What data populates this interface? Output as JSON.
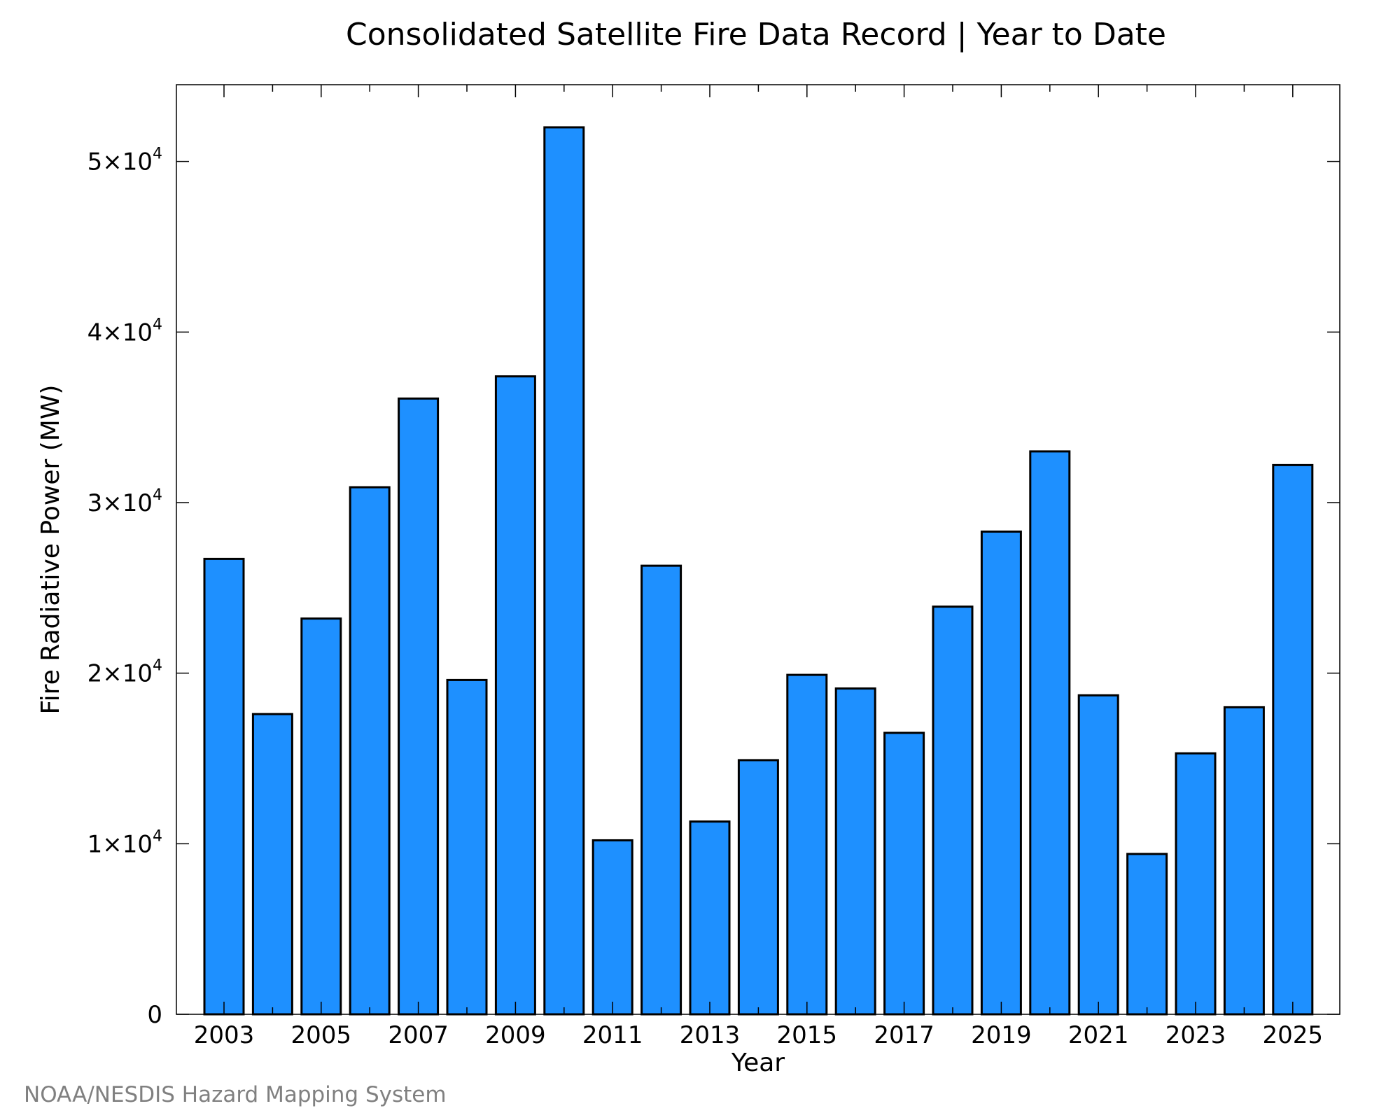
{
  "chart_data": {
    "type": "bar",
    "title": "Consolidated Satellite Fire Data Record | Year to Date",
    "xlabel": "Year",
    "ylabel": "Fire Radiative Power (MW)",
    "categories": [
      "2003",
      "2004",
      "2005",
      "2006",
      "2007",
      "2008",
      "2009",
      "2010",
      "2011",
      "2012",
      "2013",
      "2014",
      "2015",
      "2016",
      "2017",
      "2018",
      "2019",
      "2020",
      "2021",
      "2022",
      "2023",
      "2024",
      "2025"
    ],
    "values": [
      26700,
      17600,
      23200,
      30900,
      36100,
      19600,
      37400,
      52000,
      10200,
      26300,
      11300,
      14900,
      19900,
      19100,
      16500,
      23900,
      28300,
      33000,
      18700,
      9400,
      15300,
      18000,
      32200
    ],
    "x_tick_labels": [
      "2003",
      "2005",
      "2007",
      "2009",
      "2011",
      "2013",
      "2015",
      "2017",
      "2019",
      "2021",
      "2023",
      "2025"
    ],
    "y_ticks": [
      {
        "value": 0,
        "mantissa": "0",
        "exponent": ""
      },
      {
        "value": 10000,
        "mantissa": "1×10",
        "exponent": "4"
      },
      {
        "value": 20000,
        "mantissa": "2×10",
        "exponent": "4"
      },
      {
        "value": 30000,
        "mantissa": "3×10",
        "exponent": "4"
      },
      {
        "value": 40000,
        "mantissa": "4×10",
        "exponent": "4"
      },
      {
        "value": 50000,
        "mantissa": "5×10",
        "exponent": "4"
      }
    ],
    "ylim": [
      0,
      54500
    ],
    "bar_color": "#1e90ff",
    "grid": false,
    "legend": "none"
  },
  "credit": "NOAA/NESDIS Hazard Mapping System"
}
